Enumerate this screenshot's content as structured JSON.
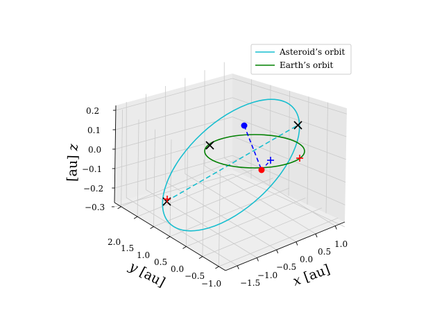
{
  "chart_data": {
    "type": "line3d",
    "xlabel": {
      "var": "x",
      "unit": "[au]"
    },
    "ylabel": {
      "var": "y",
      "unit": "[au]"
    },
    "zlabel": {
      "var": "z",
      "unit": "[au]"
    },
    "xticks": [
      "−1.5",
      "−1.0",
      "−0.5",
      "0.0",
      "0.5",
      "1.0"
    ],
    "yticks": [
      "2.0",
      "1.5",
      "1.0",
      "0.5",
      "0.0",
      "−0.5",
      "−1.0"
    ],
    "zticks": [
      "0.2",
      "0.1",
      "0.0",
      "−0.1",
      "−0.2",
      "−0.3"
    ],
    "xlim": [
      -1.7,
      1.3
    ],
    "ylim": [
      -1.1,
      2.2
    ],
    "zlim": [
      -0.35,
      0.25
    ],
    "grid": true,
    "legend_position": "top-right",
    "series": [
      {
        "name": "Asteroid’s orbit",
        "color": "#17becf"
      },
      {
        "name": "Earth’s orbit",
        "color": "#008000"
      }
    ],
    "markers": [
      {
        "kind": "node",
        "symbol": "x",
        "color": "#000000"
      },
      {
        "kind": "asteroid-position",
        "symbol": "dot",
        "color": "#0000ff"
      },
      {
        "kind": "earth-position",
        "symbol": "dot",
        "color": "#ff0000"
      },
      {
        "kind": "projection",
        "symbol": "+",
        "color": "#ff0000"
      },
      {
        "kind": "projection",
        "symbol": "+",
        "color": "#0000ff"
      }
    ]
  }
}
